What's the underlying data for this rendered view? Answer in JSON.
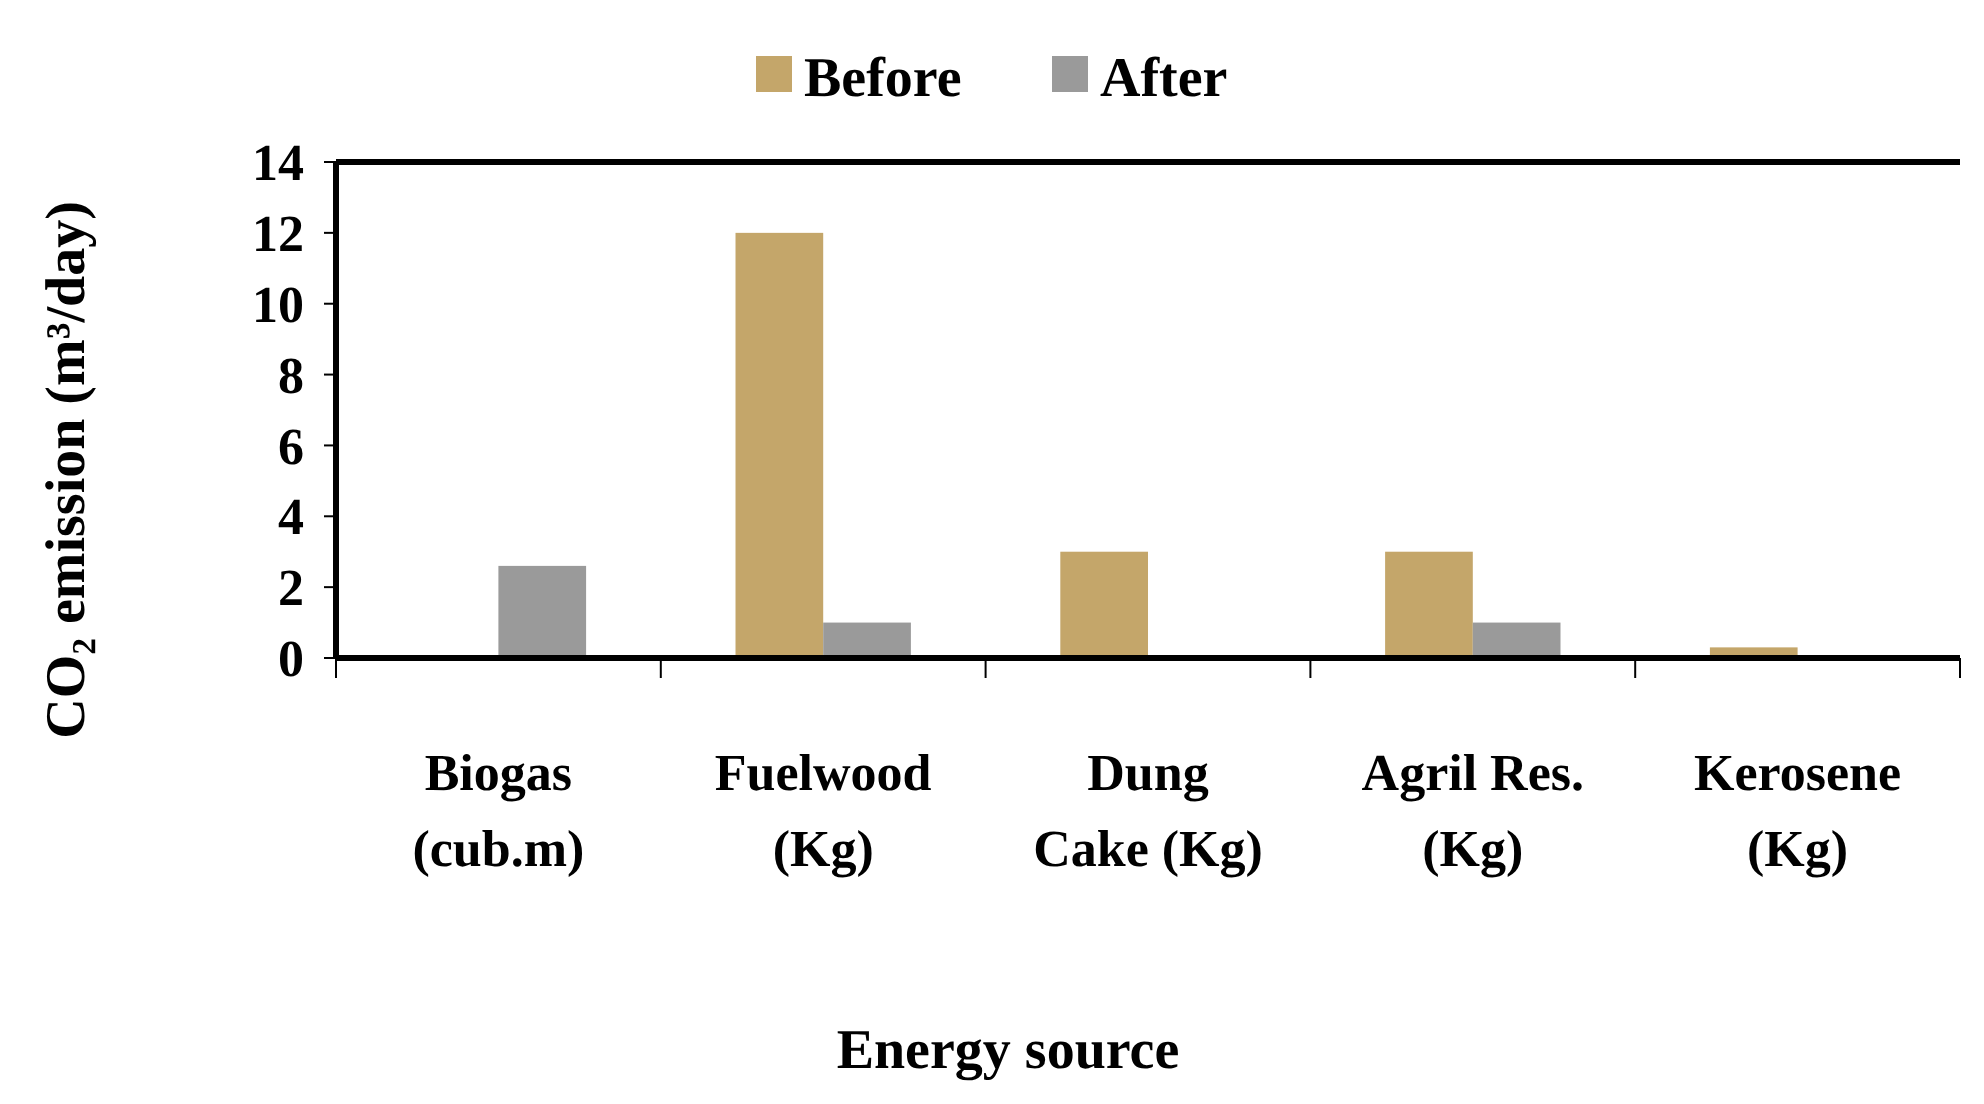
{
  "chart_data": {
    "type": "bar",
    "xlabel": "Energy source",
    "ylabel": "CO₂ emission (m³/day)",
    "categories": [
      "Biogas\n(cub.m)",
      "Fuelwood\n(Kg)",
      "Dung\nCake (Kg)",
      "Agril Res.\n(Kg)",
      "Kerosene\n(Kg)"
    ],
    "series": [
      {
        "name": "Before",
        "color": "#c4a66a",
        "values": [
          0,
          12,
          3,
          3,
          0.3
        ]
      },
      {
        "name": "After",
        "color": "#9a9a9a",
        "values": [
          2.6,
          1,
          0,
          1,
          0
        ]
      }
    ],
    "ylim": [
      0,
      14
    ],
    "yticks": [
      0,
      2,
      4,
      6,
      8,
      10,
      12,
      14
    ],
    "grid": false,
    "legend": "top"
  }
}
